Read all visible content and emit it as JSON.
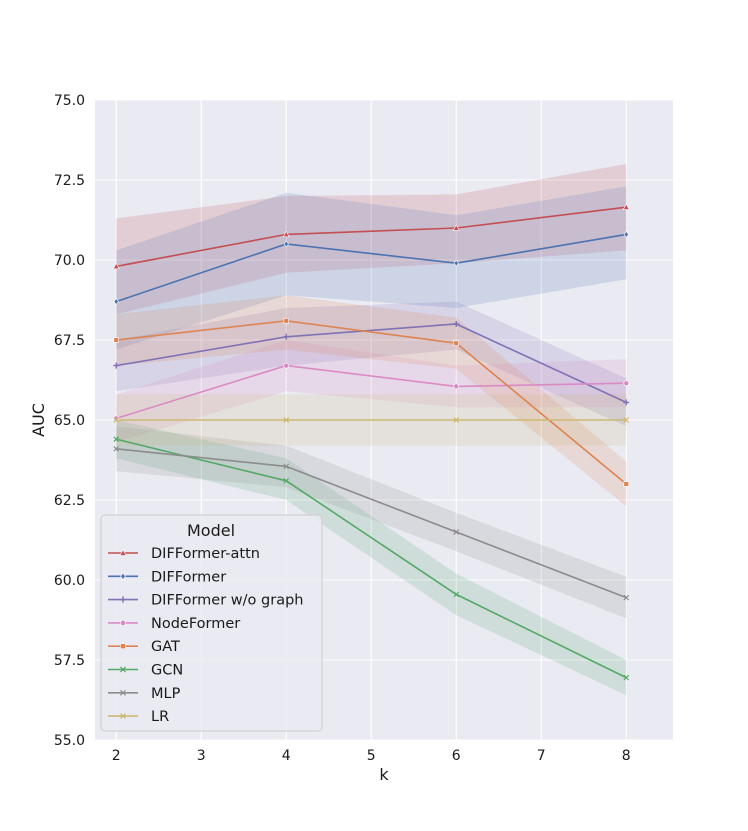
{
  "chart_data": {
    "type": "line",
    "title": "",
    "xlabel": "k",
    "ylabel": "AUC",
    "x": [
      2,
      4,
      6,
      8
    ],
    "x_ticks": [
      2,
      3,
      4,
      5,
      6,
      7,
      8
    ],
    "x_tick_labels": [
      "2",
      "3",
      "4",
      "5",
      "6",
      "7",
      "8"
    ],
    "xlim": [
      1.75,
      8.55
    ],
    "ylim": [
      55.0,
      75.0
    ],
    "y_ticks": [
      55.0,
      57.5,
      60.0,
      62.5,
      65.0,
      67.5,
      70.0,
      72.5,
      75.0
    ],
    "y_tick_labels": [
      "55.0",
      "57.5",
      "60.0",
      "62.5",
      "65.0",
      "67.5",
      "70.0",
      "72.5",
      "75.0"
    ],
    "grid": true,
    "background": "#eaeaf2",
    "legend": {
      "title": "Model",
      "placement": "lower-left"
    },
    "series": [
      {
        "name": "DIFFormer-attn",
        "color": "#c44e52",
        "marker": "triangle",
        "values": [
          69.8,
          70.8,
          71.0,
          71.65
        ],
        "lower": [
          68.3,
          69.6,
          69.9,
          70.3
        ],
        "upper": [
          71.3,
          72.0,
          72.05,
          73.0
        ]
      },
      {
        "name": "DIFFormer",
        "color": "#4c72b0",
        "marker": "diamond",
        "values": [
          68.7,
          70.5,
          69.9,
          70.8
        ],
        "lower": [
          67.2,
          68.9,
          68.5,
          69.4
        ],
        "upper": [
          70.3,
          72.1,
          71.4,
          72.3
        ]
      },
      {
        "name": "DIFFormer w/o graph",
        "color": "#8172b3",
        "marker": "plus",
        "values": [
          66.7,
          67.6,
          68.0,
          65.55
        ],
        "lower": [
          65.9,
          66.7,
          67.2,
          64.8
        ],
        "upper": [
          67.5,
          68.5,
          68.7,
          66.3
        ]
      },
      {
        "name": "NodeFormer",
        "color": "#da8bc3",
        "marker": "circle",
        "values": [
          65.05,
          66.7,
          66.05,
          66.15
        ],
        "lower": [
          64.3,
          65.9,
          65.4,
          65.4
        ],
        "upper": [
          65.8,
          67.5,
          66.7,
          66.9
        ]
      },
      {
        "name": "GAT",
        "color": "#dd8452",
        "marker": "square",
        "values": [
          67.5,
          68.1,
          67.4,
          63.0
        ],
        "lower": [
          66.7,
          67.2,
          66.6,
          62.3
        ],
        "upper": [
          68.3,
          68.9,
          68.2,
          63.7
        ]
      },
      {
        "name": "GCN",
        "color": "#55a868",
        "marker": "x",
        "values": [
          64.4,
          63.1,
          59.55,
          56.95
        ],
        "lower": [
          63.8,
          62.5,
          58.9,
          56.4
        ],
        "upper": [
          65.0,
          63.8,
          60.2,
          57.5
        ]
      },
      {
        "name": "MLP",
        "color": "#8c8c8c",
        "marker": "x",
        "values": [
          64.1,
          63.55,
          61.5,
          59.45
        ],
        "lower": [
          63.4,
          62.9,
          60.9,
          58.8
        ],
        "upper": [
          64.8,
          64.2,
          62.1,
          60.1
        ]
      },
      {
        "name": "LR",
        "color": "#ccb974",
        "marker": "x",
        "values": [
          65.0,
          65.0,
          65.0,
          65.0
        ],
        "lower": [
          64.2,
          64.2,
          64.2,
          64.2
        ],
        "upper": [
          65.8,
          65.8,
          65.8,
          65.8
        ]
      }
    ]
  }
}
